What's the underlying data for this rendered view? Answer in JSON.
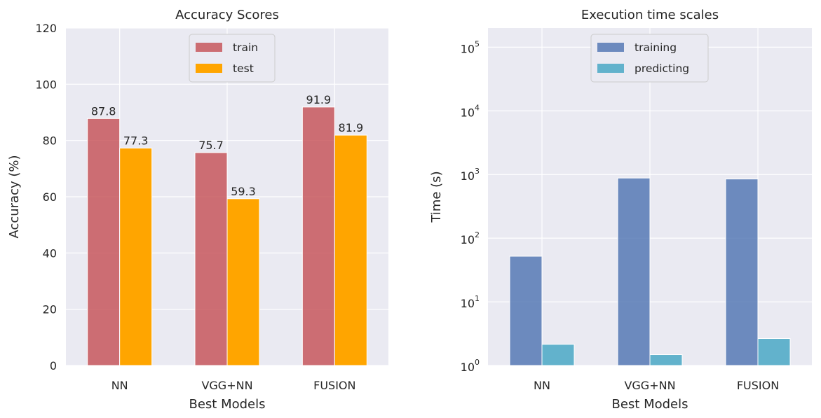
{
  "chart_data": [
    {
      "type": "bar",
      "title": "Accuracy Scores",
      "xlabel": "Best Models",
      "ylabel": "Accuracy (%)",
      "categories": [
        "NN",
        "VGG+NN",
        "FUSION"
      ],
      "ylim": [
        0,
        120
      ],
      "yticks": [
        0,
        20,
        40,
        60,
        80,
        100,
        120
      ],
      "grid": true,
      "legend_position": "top-center",
      "series": [
        {
          "name": "train",
          "values": [
            87.8,
            75.7,
            91.9
          ],
          "labels": [
            "87.8",
            "75.7",
            "91.9"
          ],
          "color": "#c44e52",
          "opacity": 0.8
        },
        {
          "name": "test",
          "values": [
            77.3,
            59.3,
            81.9
          ],
          "labels": [
            "77.3",
            "59.3",
            "81.9"
          ],
          "color": "#ffa500",
          "opacity": 1.0
        }
      ]
    },
    {
      "type": "bar",
      "title": "Execution time scales",
      "xlabel": "Best Models",
      "ylabel": "Time (s)",
      "yscale": "log",
      "categories": [
        "NN",
        "VGG+NN",
        "FUSION"
      ],
      "ylim": [
        1,
        200000
      ],
      "yticks": [
        1,
        10,
        100,
        1000,
        10000,
        100000
      ],
      "ytick_exponents": [
        "0",
        "1",
        "2",
        "3",
        "4",
        "5"
      ],
      "ytick_base": "10",
      "grid": true,
      "legend_position": "top-center",
      "series": [
        {
          "name": "training",
          "values": [
            52,
            880,
            850
          ],
          "color": "#4c72b0",
          "opacity": 0.8
        },
        {
          "name": "predicting",
          "values": [
            2.15,
            1.48,
            2.65
          ],
          "color": "#4aa8c6",
          "opacity": 0.85
        }
      ]
    }
  ]
}
